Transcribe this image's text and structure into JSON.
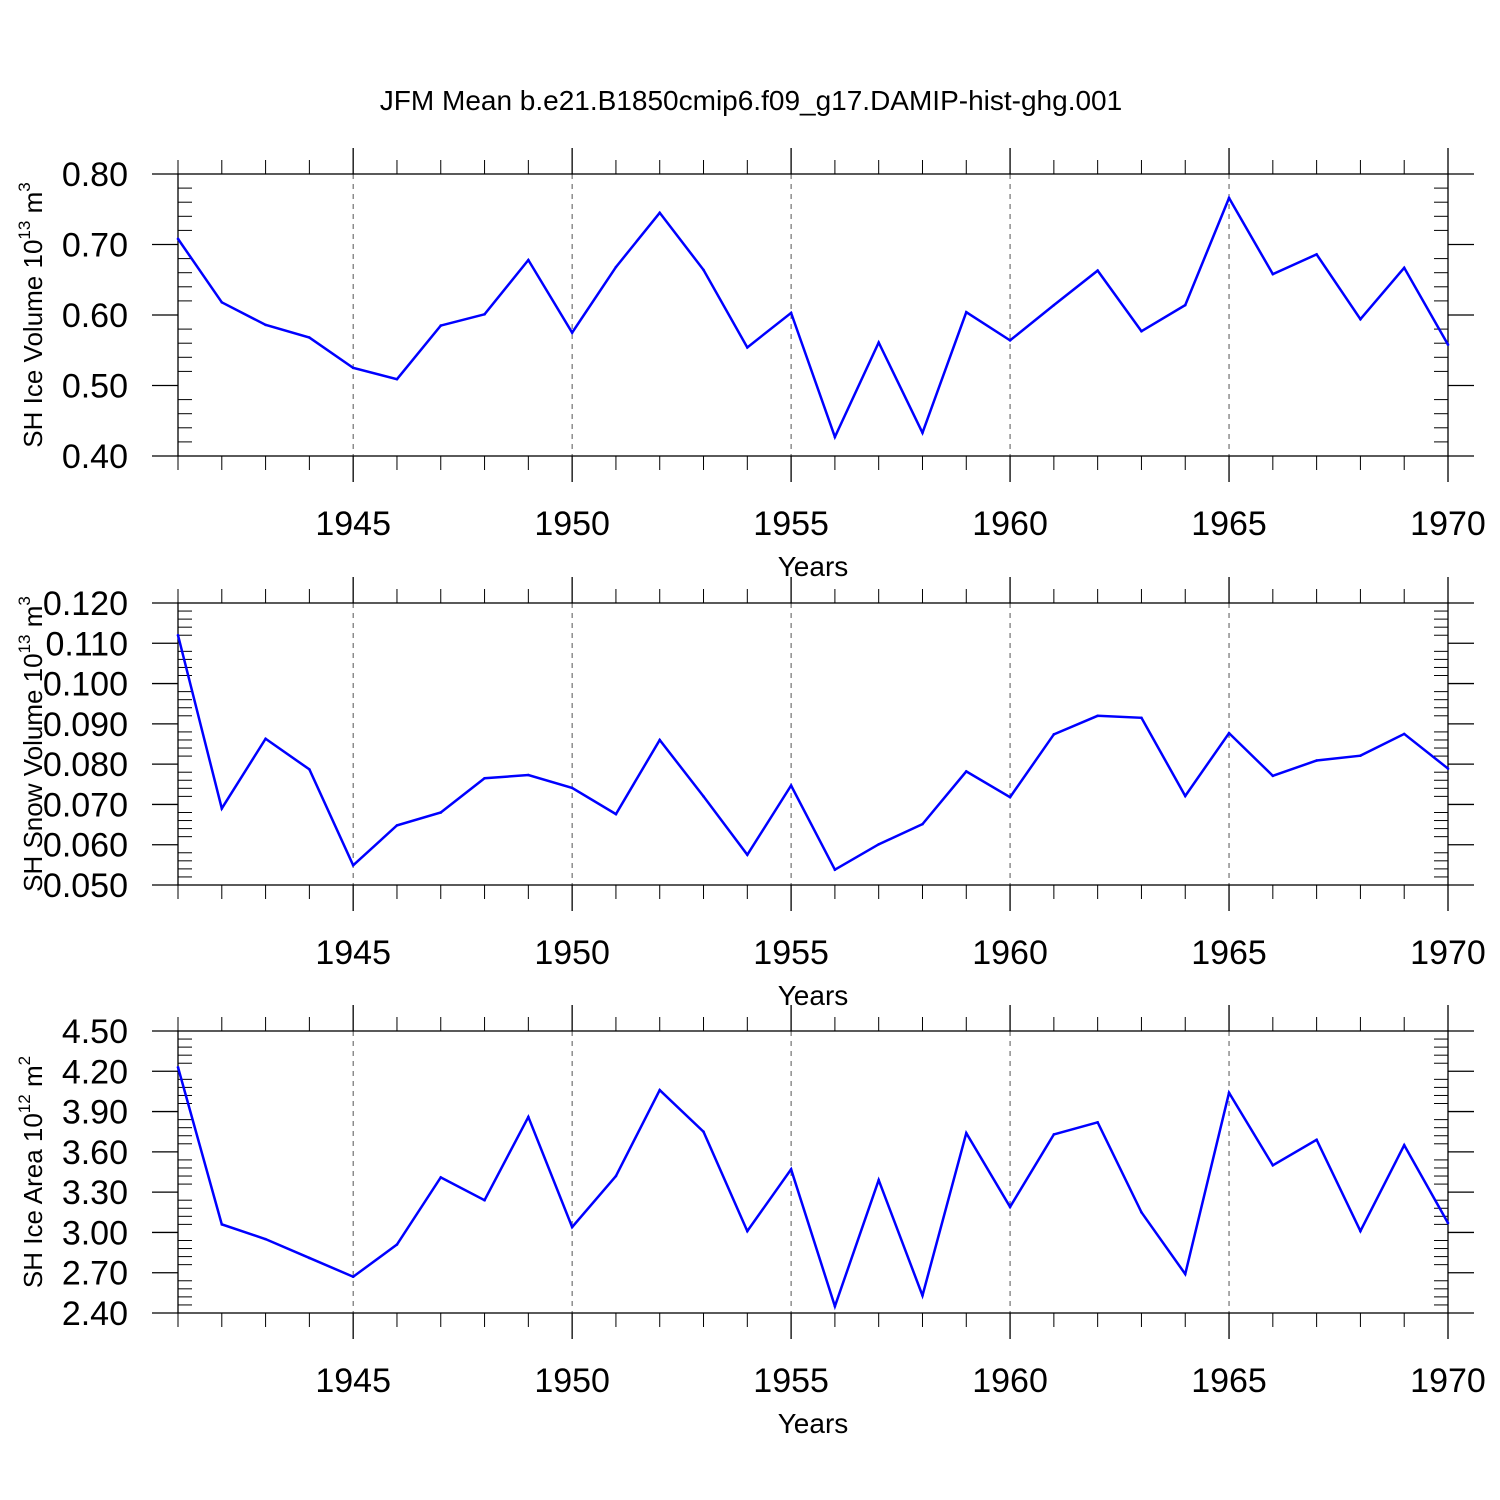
{
  "figure": {
    "title": "JFM Mean b.e21.B1850cmip6.f09_g17.DAMIP-hist-ghg.001",
    "line_color": "#0000ff"
  },
  "chart_data": [
    {
      "type": "line",
      "title": "",
      "xlabel": "Years",
      "ylabel": {
        "base": "SH Ice Volume 10",
        "exp1": "13",
        "unit": " m",
        "exp2": "3"
      },
      "xlim": [
        1941,
        1970
      ],
      "ylim": [
        0.4,
        0.8
      ],
      "xticks": [
        "1945",
        "1950",
        "1955",
        "1960",
        "1965",
        "1970"
      ],
      "yticks": [
        "0.40",
        "0.50",
        "0.60",
        "0.70",
        "0.80"
      ],
      "grid": "vertical dashed at major year ticks",
      "x": [
        1941,
        1942,
        1943,
        1944,
        1945,
        1946,
        1947,
        1948,
        1949,
        1950,
        1951,
        1952,
        1953,
        1954,
        1955,
        1956,
        1957,
        1958,
        1959,
        1960,
        1961,
        1962,
        1963,
        1964,
        1965,
        1966,
        1967,
        1968,
        1969,
        1970
      ],
      "series": [
        {
          "name": "SH Ice Volume",
          "values": [
            0.708,
            0.618,
            0.586,
            0.568,
            0.525,
            0.509,
            0.585,
            0.601,
            0.678,
            0.575,
            0.668,
            0.745,
            0.664,
            0.554,
            0.603,
            0.427,
            0.561,
            0.433,
            0.604,
            0.564,
            0.614,
            0.663,
            0.577,
            0.614,
            0.766,
            0.658,
            0.686,
            0.594,
            0.667,
            0.558
          ]
        }
      ]
    },
    {
      "type": "line",
      "title": "",
      "xlabel": "Years",
      "ylabel": {
        "base": "SH Snow Volume 10",
        "exp1": "13",
        "unit": " m",
        "exp2": "3"
      },
      "xlim": [
        1941,
        1970
      ],
      "ylim": [
        0.05,
        0.12
      ],
      "xticks": [
        "1945",
        "1950",
        "1955",
        "1960",
        "1965",
        "1970"
      ],
      "yticks": [
        "0.050",
        "0.060",
        "0.070",
        "0.080",
        "0.090",
        "0.100",
        "0.110",
        "0.120"
      ],
      "grid": "vertical dashed at major year ticks",
      "x": [
        1941,
        1942,
        1943,
        1944,
        1945,
        1946,
        1947,
        1948,
        1949,
        1950,
        1951,
        1952,
        1953,
        1954,
        1955,
        1956,
        1957,
        1958,
        1959,
        1960,
        1961,
        1962,
        1963,
        1964,
        1965,
        1966,
        1967,
        1968,
        1969,
        1970
      ],
      "series": [
        {
          "name": "SH Snow Volume",
          "values": [
            0.112,
            0.069,
            0.0863,
            0.0787,
            0.0549,
            0.0648,
            0.068,
            0.0765,
            0.0773,
            0.0741,
            0.0676,
            0.086,
            0.072,
            0.0575,
            0.0747,
            0.0538,
            0.0601,
            0.0651,
            0.0782,
            0.0718,
            0.0874,
            0.092,
            0.0915,
            0.0721,
            0.0877,
            0.0771,
            0.0809,
            0.0821,
            0.0875,
            0.0789
          ]
        }
      ]
    },
    {
      "type": "line",
      "title": "",
      "xlabel": "Years",
      "ylabel": {
        "base": "SH Ice Area 10",
        "exp1": "12",
        "unit": " m",
        "exp2": "2"
      },
      "xlim": [
        1941,
        1970
      ],
      "ylim": [
        2.4,
        4.5
      ],
      "xticks": [
        "1945",
        "1950",
        "1955",
        "1960",
        "1965",
        "1970"
      ],
      "yticks": [
        "2.40",
        "2.70",
        "3.00",
        "3.30",
        "3.60",
        "3.90",
        "4.20",
        "4.50"
      ],
      "grid": "vertical dashed at major year ticks",
      "x": [
        1941,
        1942,
        1943,
        1944,
        1945,
        1946,
        1947,
        1948,
        1949,
        1950,
        1951,
        1952,
        1953,
        1954,
        1955,
        1956,
        1957,
        1958,
        1959,
        1960,
        1961,
        1962,
        1963,
        1964,
        1965,
        1966,
        1967,
        1968,
        1969,
        1970
      ],
      "series": [
        {
          "name": "SH Ice Area",
          "values": [
            4.23,
            3.06,
            2.95,
            2.81,
            2.67,
            2.91,
            3.41,
            3.24,
            3.86,
            3.04,
            3.42,
            4.06,
            3.75,
            3.01,
            3.47,
            2.45,
            3.39,
            2.53,
            3.74,
            3.19,
            3.73,
            3.82,
            3.15,
            2.69,
            4.04,
            3.5,
            3.69,
            3.01,
            3.65,
            3.07
          ]
        }
      ]
    }
  ]
}
